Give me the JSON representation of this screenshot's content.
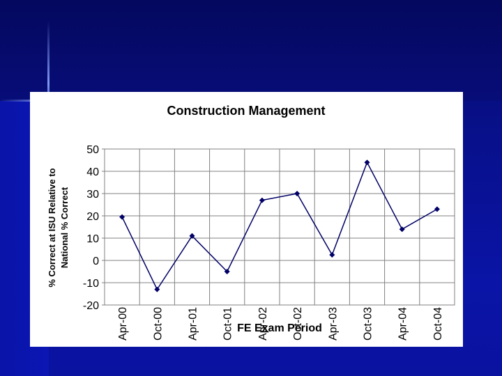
{
  "chart_data": {
    "type": "line",
    "title": "Construction Management",
    "xlabel": "FE Exam Period",
    "ylabel_lines": [
      "% Correct at ISU Relative to",
      "National % Correct"
    ],
    "categories": [
      "Apr-00",
      "Oct-00",
      "Apr-01",
      "Oct-01",
      "Apr-02",
      "Oct-02",
      "Apr-03",
      "Oct-03",
      "Apr-04",
      "Oct-04"
    ],
    "values": [
      19.5,
      -13,
      11,
      -5,
      27,
      30,
      2.5,
      44,
      14,
      23
    ],
    "ylim": [
      -20,
      50
    ],
    "yticks": [
      -20,
      -10,
      0,
      10,
      20,
      30,
      40,
      50
    ],
    "grid": true,
    "legend": "none",
    "series_color": "#000066",
    "marker": "diamond"
  }
}
